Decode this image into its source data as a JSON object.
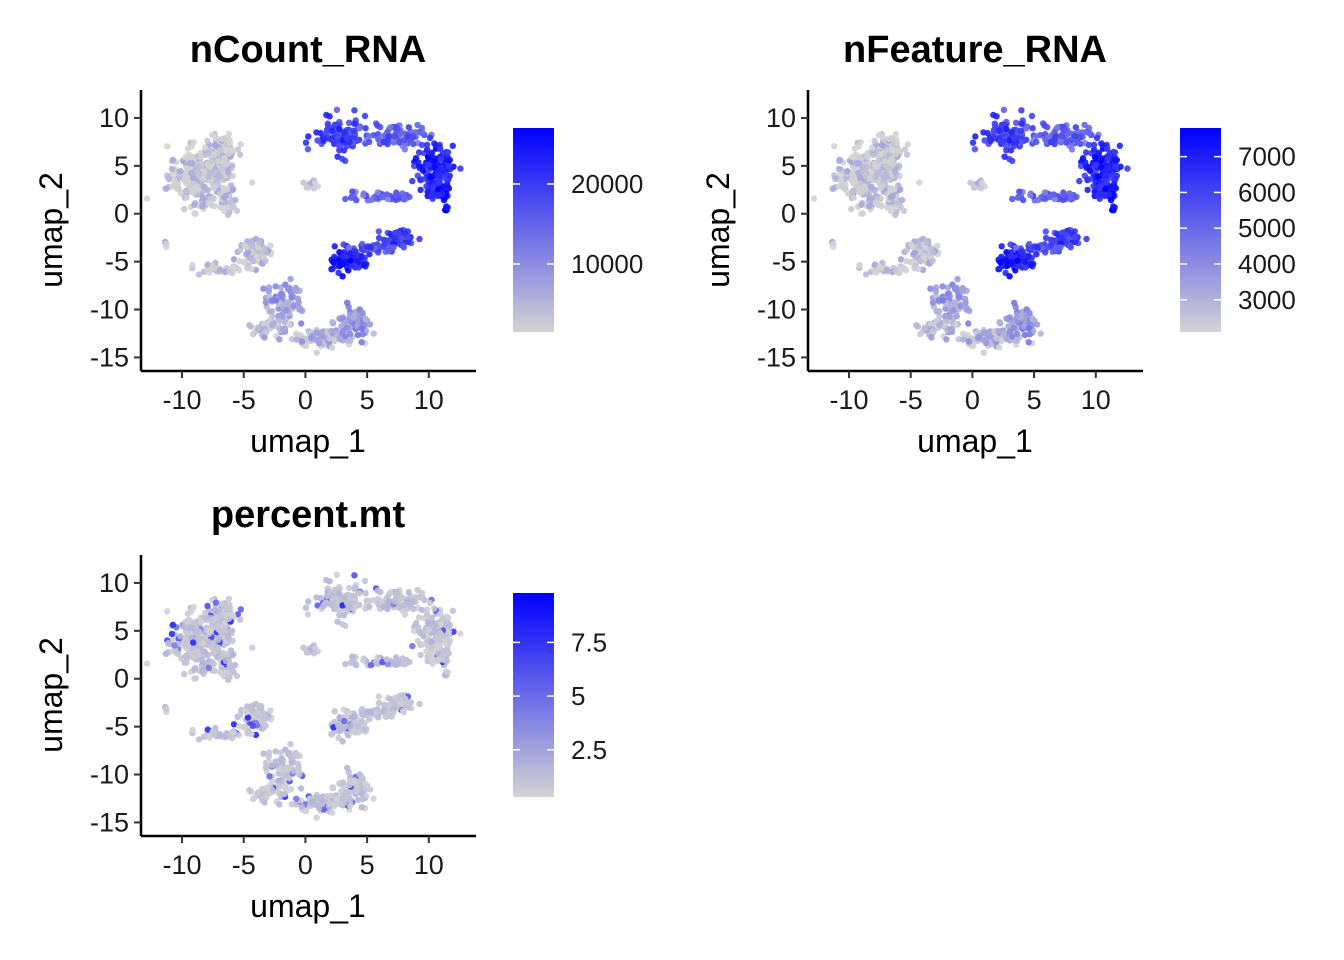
{
  "chart_data": [
    {
      "type": "scatter",
      "title": "nCount_RNA",
      "xlabel": "umap_1",
      "ylabel": "umap_2",
      "xlim": [
        -13,
        13.5
      ],
      "ylim": [
        -16,
        12.5
      ],
      "xticks": [
        -10,
        -5,
        0,
        5,
        10
      ],
      "yticks": [
        10,
        5,
        0,
        -5,
        -10,
        -15
      ],
      "grid": false,
      "legend": "right",
      "color_low": "#d3d3d3",
      "color_high": "#0000ff",
      "color_range": [
        1500,
        27000
      ],
      "legend_ticks": [
        20000,
        10000
      ],
      "point_color_values": "heatmap_default"
    },
    {
      "type": "scatter",
      "title": "nFeature_RNA",
      "xlabel": "umap_1",
      "ylabel": "umap_2",
      "xlim": [
        -13,
        13.5
      ],
      "ylim": [
        -16,
        12.5
      ],
      "xticks": [
        -10,
        -5,
        0,
        5,
        10
      ],
      "yticks": [
        10,
        5,
        0,
        -5,
        -10,
        -15
      ],
      "grid": false,
      "legend": "right",
      "color_low": "#d3d3d3",
      "color_high": "#0000ff",
      "color_range": [
        2100,
        7800
      ],
      "legend_ticks": [
        7000,
        6000,
        5000,
        4000,
        3000
      ],
      "point_color_values": "heatmap_default"
    },
    {
      "type": "scatter",
      "title": "percent.mt",
      "xlabel": "umap_1",
      "ylabel": "umap_2",
      "xlim": [
        -13,
        13.5
      ],
      "ylim": [
        -16,
        12.5
      ],
      "xticks": [
        -10,
        -5,
        0,
        5,
        10
      ],
      "yticks": [
        10,
        5,
        0,
        -5,
        -10,
        -15
      ],
      "grid": false,
      "legend": "right",
      "color_low": "#d3d3d3",
      "color_high": "#0000ff",
      "color_range": [
        0.3,
        9.8
      ],
      "legend_ticks": [
        7.5,
        5.0,
        2.5
      ],
      "point_color_values": "mostly_low"
    }
  ],
  "clusters": [
    {
      "x": -8.5,
      "y": 3.8,
      "sx": 1.6,
      "sy": 1.8,
      "n": 260,
      "level": 0.05
    },
    {
      "x": -7.0,
      "y": 6.5,
      "sx": 0.9,
      "sy": 1.2,
      "n": 90,
      "level": 0.05
    },
    {
      "x": -6.5,
      "y": 1.5,
      "sx": 0.5,
      "sy": 0.9,
      "n": 40,
      "level": 0.05
    },
    {
      "x": -4.0,
      "y": -4.0,
      "sx": 0.9,
      "sy": 0.8,
      "n": 90,
      "level": 0.08
    },
    {
      "x": -7.0,
      "y": -5.8,
      "sx": 1.4,
      "sy": 0.35,
      "n": 40,
      "level": 0.05
    },
    {
      "x": -1.8,
      "y": -9.2,
      "sx": 0.9,
      "sy": 1.3,
      "n": 80,
      "level": 0.25
    },
    {
      "x": -3.0,
      "y": -11.8,
      "sx": 1.0,
      "sy": 0.5,
      "n": 40,
      "level": 0.15
    },
    {
      "x": 1.5,
      "y": -13.0,
      "sx": 1.6,
      "sy": 0.6,
      "n": 90,
      "level": 0.15
    },
    {
      "x": 3.8,
      "y": -11.5,
      "sx": 0.9,
      "sy": 1.0,
      "n": 60,
      "level": 0.3
    },
    {
      "x": 3.0,
      "y": 8.0,
      "sx": 1.4,
      "sy": 1.2,
      "n": 110,
      "level": 0.7
    },
    {
      "x": 7.5,
      "y": 8.2,
      "sx": 1.3,
      "sy": 0.7,
      "n": 80,
      "level": 0.55
    },
    {
      "x": 10.5,
      "y": 5.0,
      "sx": 0.9,
      "sy": 1.3,
      "n": 110,
      "level": 0.85
    },
    {
      "x": 10.8,
      "y": 2.5,
      "sx": 0.7,
      "sy": 0.8,
      "n": 60,
      "level": 0.9
    },
    {
      "x": 6.5,
      "y": 1.8,
      "sx": 1.6,
      "sy": 0.3,
      "n": 50,
      "level": 0.5
    },
    {
      "x": 3.5,
      "y": -4.8,
      "sx": 1.0,
      "sy": 0.8,
      "n": 90,
      "level": 0.85
    },
    {
      "x": 7.5,
      "y": -2.6,
      "sx": 0.8,
      "sy": 0.6,
      "n": 60,
      "level": 0.75
    },
    {
      "x": 5.5,
      "y": -3.6,
      "sx": 1.0,
      "sy": 0.3,
      "n": 30,
      "level": 0.6
    },
    {
      "x": 0.3,
      "y": 3.0,
      "sx": 0.35,
      "sy": 0.3,
      "n": 12,
      "level": 0.05
    },
    {
      "x": 11.5,
      "y": 0.5,
      "sx": 0.2,
      "sy": 0.2,
      "n": 5,
      "level": 1.0
    },
    {
      "x": -11.3,
      "y": -3.2,
      "sx": 0.15,
      "sy": 0.15,
      "n": 4,
      "level": 0.05
    }
  ]
}
